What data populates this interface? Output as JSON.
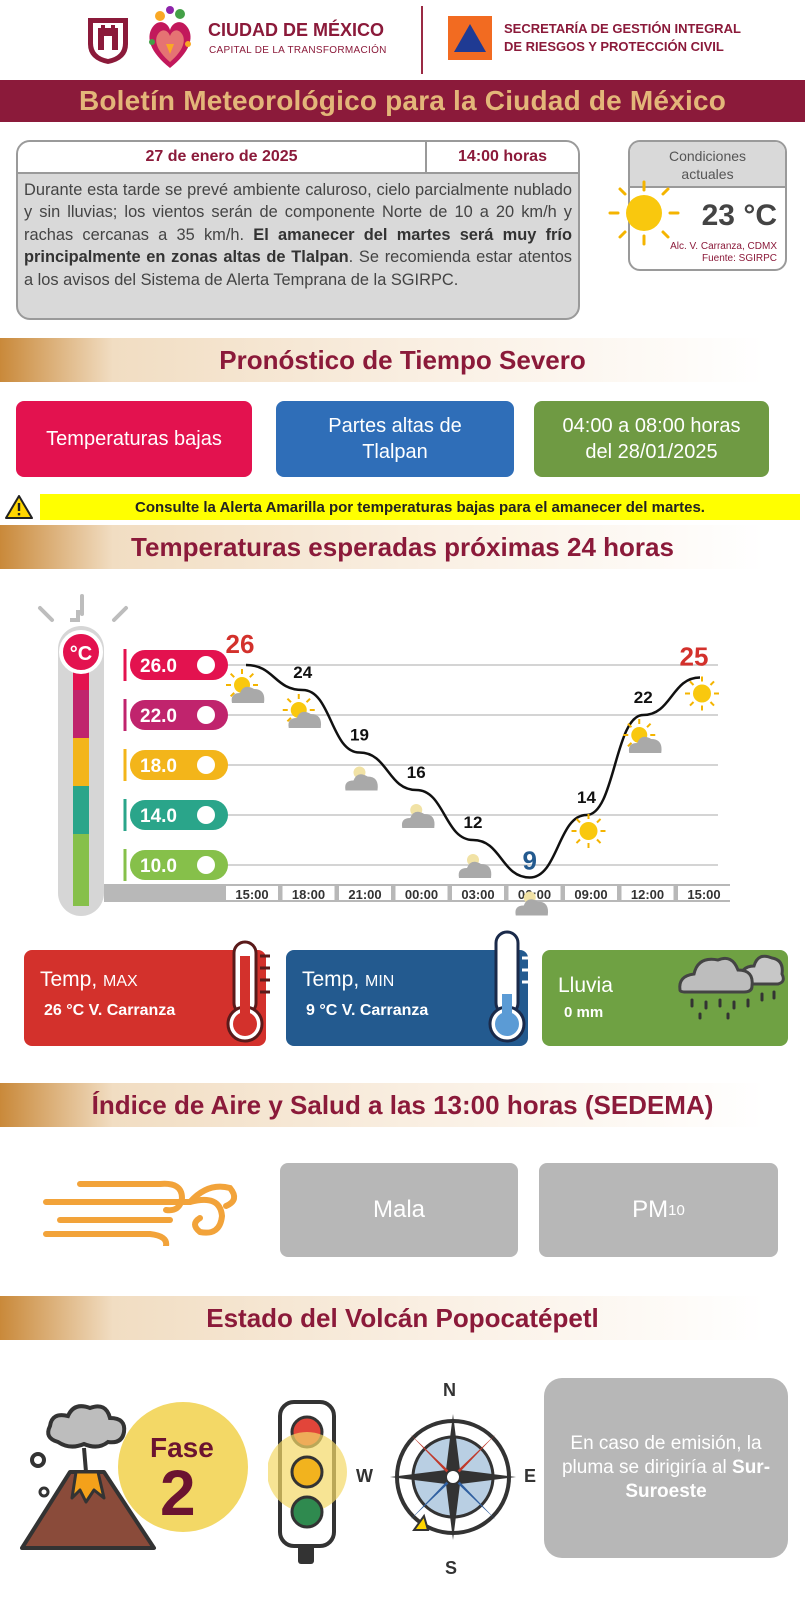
{
  "header": {
    "city_title": "CIUDAD DE MÉXICO",
    "city_subtitle": "CAPITAL DE LA TRANSFORMACIÓN",
    "secretaria_line1": "SECRETARÍA DE GESTIÓN INTEGRAL",
    "secretaria_line2": "DE RIESGOS Y PROTECCIÓN CIVIL",
    "banner": "Boletín Meteorológico para la Ciudad de México"
  },
  "bulletin": {
    "date": "27 de enero de 2025",
    "time": "14:00 horas",
    "text_part1": "Durante esta tarde se prevé ambiente caluroso, cielo parcialmente nublado y sin lluvias; los vientos serán de componente Norte de 10 a 20 km/h y rachas cercanas a 35 km/h. ",
    "text_bold": "El amanecer del martes será muy frío principalmente en zonas altas de Tlalpan",
    "text_part2": ". Se recomienda estar atentos a los avisos del Sistema de Alerta Temprana de la SGIRPC."
  },
  "current_conditions": {
    "title_line1": "Condiciones",
    "title_line2": "actuales",
    "temperature": "23 °C",
    "location": "Alc. V. Carranza, CDMX",
    "source": "Fuente: SGIRPC"
  },
  "severe": {
    "title": "Pronóstico de Tiempo Severo",
    "pill1": "Temperaturas bajas",
    "pill2_line1": "Partes altas de",
    "pill2_line2": "Tlalpan",
    "pill3_line1": "04:00 a 08:00 horas",
    "pill3_line2": "del 28/01/2025",
    "alert": "Consulte la Alerta Amarilla por temperaturas bajas para el amanecer del martes."
  },
  "temps24": {
    "title": "Temperaturas esperadas próximas 24 horas"
  },
  "chart_data": {
    "type": "line",
    "x": [
      "15:00",
      "18:00",
      "21:00",
      "00:00",
      "03:00",
      "06:00",
      "09:00",
      "12:00",
      "15:00"
    ],
    "ticks": [
      "26.0",
      "22.0",
      "18.0",
      "14.0",
      "10.0"
    ],
    "tick_values": [
      26,
      22,
      18,
      14,
      10
    ],
    "points": [
      {
        "x": "15:00",
        "label": "26"
      },
      {
        "x": "16:30",
        "label": "24"
      },
      {
        "x": "19:30",
        "label": "19"
      },
      {
        "x": "22:30",
        "label": "16"
      },
      {
        "x": "01:30",
        "label": "12"
      },
      {
        "x": "04:30",
        "label": "9"
      },
      {
        "x": "07:30",
        "label": "14"
      },
      {
        "x": "10:30",
        "label": "22"
      },
      {
        "x": "13:30",
        "label": "25"
      }
    ],
    "values": [
      26,
      24,
      19,
      16,
      12,
      9,
      14,
      22,
      25
    ],
    "icons": [
      "sun-partly-cloudy-icon",
      "sun-partly-cloudy-icon",
      "night-cloud-icon",
      "night-cloud-icon",
      "night-cloud-icon",
      "night-cloud-icon",
      "sun-icon",
      "sun-partly-cloudy-icon",
      "sun-icon"
    ],
    "xlabel": "",
    "ylabel": "",
    "ylim": [
      8,
      27
    ]
  },
  "summary": {
    "max_label": "Temp,",
    "max_suffix": "MAX",
    "max_value": "26 °C  V. Carranza",
    "min_label": "Temp,",
    "min_suffix": "MIN",
    "min_value": "9 °C  V. Carranza",
    "rain_label": "Lluvia",
    "rain_value": "0 mm"
  },
  "air": {
    "title": "Índice de Aire y Salud a las 13:00 horas (SEDEMA)",
    "quality": "Mala",
    "pollutant": "PM",
    "pollutant_sub": "10"
  },
  "volcano": {
    "title": "Estado del Volcán Popocatépetl",
    "phase_label": "Fase",
    "phase_number": "2",
    "compass_n": "N",
    "compass_s": "S",
    "compass_e": "E",
    "compass_w": "W",
    "plume_text": "En caso de emisión, la pluma se dirigiría al ",
    "plume_direction": "Sur-Suroeste"
  },
  "colors": {
    "brand": "#8b1a3a",
    "gold": "#e3b679",
    "red_pill": "#e3124f",
    "blue_pill": "#2f6eb8",
    "green_pill": "#6f9a43",
    "max_box": "#d3312c",
    "min_box": "#235a8f",
    "rain_box": "#6fa143",
    "gray_box": "#b7b7b7"
  }
}
